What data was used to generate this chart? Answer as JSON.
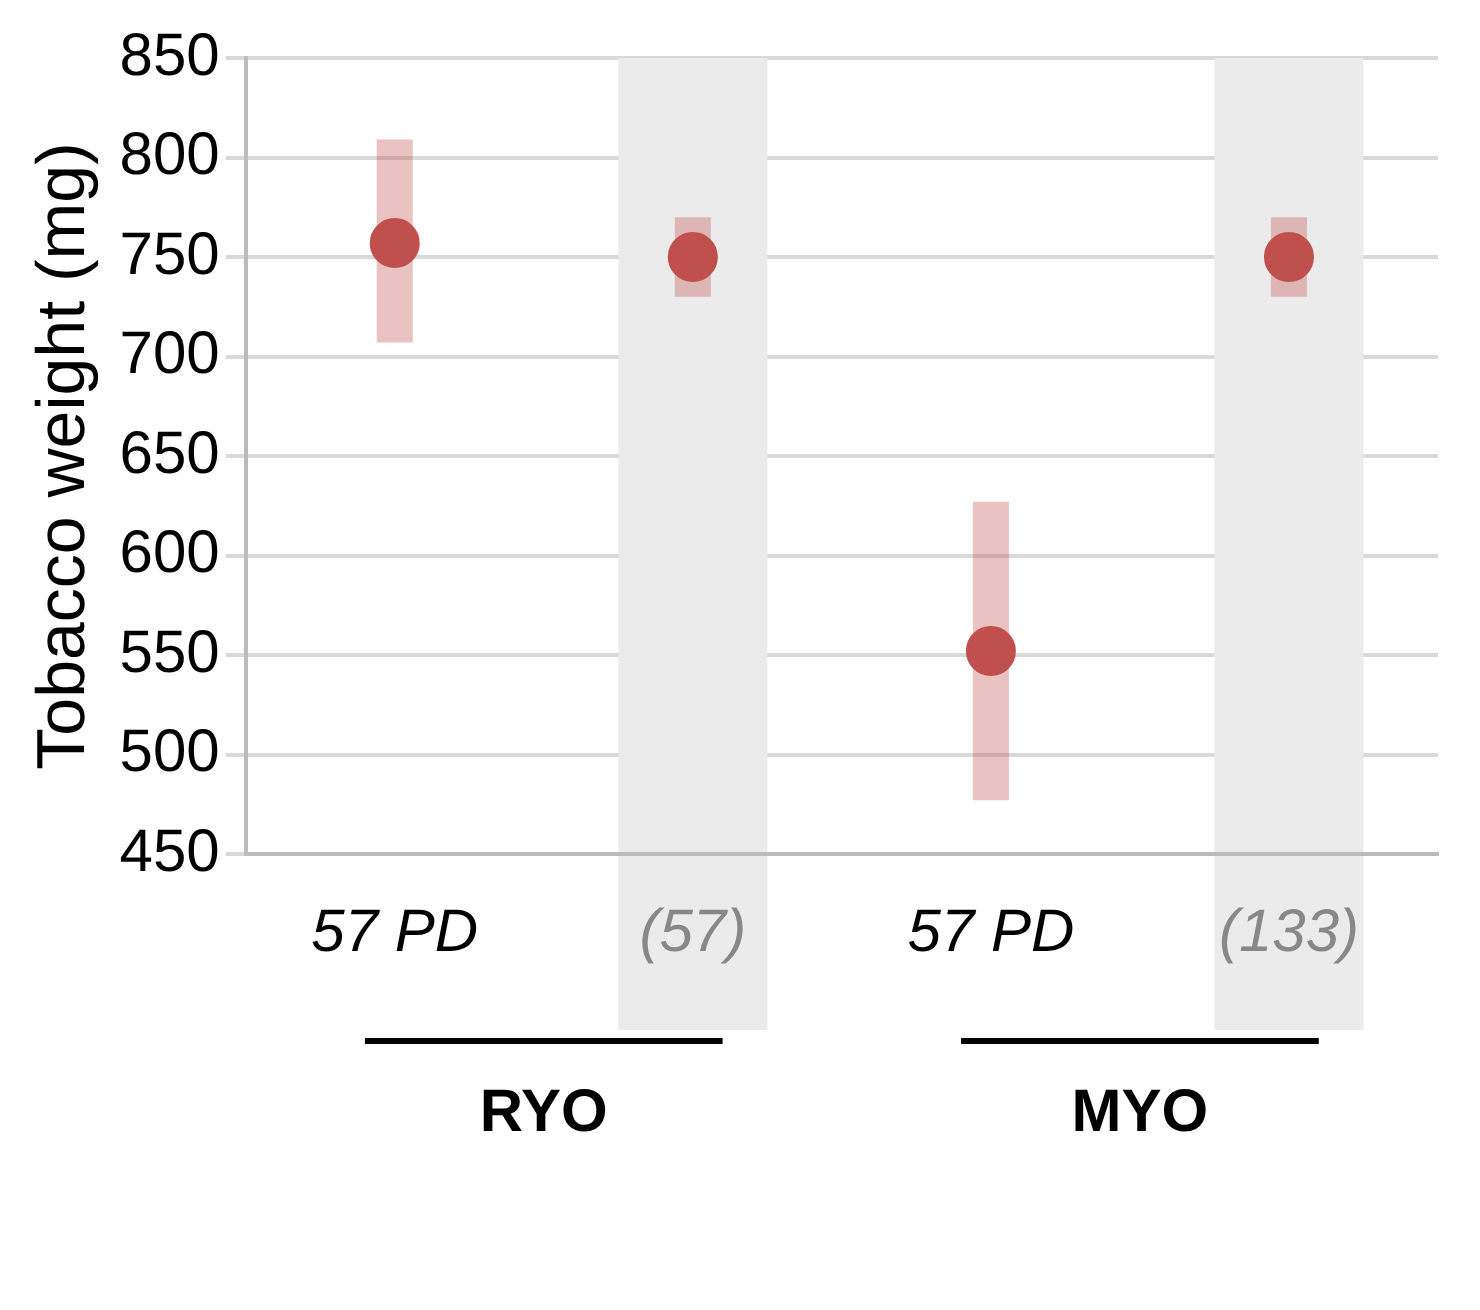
{
  "chart_data": {
    "type": "scatter",
    "ylabel": "Tobacco weight (mg)",
    "categories": [
      "57 PD",
      "(57)",
      "57 PD",
      "(133)"
    ],
    "series": [
      {
        "color": "#c0504d",
        "values": [
          757,
          750,
          552,
          750
        ],
        "errors": [
          [
            707,
            809
          ],
          [
            730,
            770
          ],
          [
            477,
            627
          ],
          [
            730,
            770
          ]
        ]
      }
    ],
    "ylim": [
      450,
      850
    ],
    "yticks": [
      450,
      500,
      550,
      600,
      650,
      700,
      750,
      800,
      850
    ],
    "bands": [
      {
        "axis": "x",
        "from": "(57)",
        "to": "(57)",
        "color": "#ebebeb"
      },
      {
        "axis": "x",
        "from": "(133)",
        "to": "(133)",
        "color": "#ebebeb"
      }
    ],
    "annotations": [
      "RYO",
      "MYO"
    ],
    "grid": "y",
    "marker": "circle",
    "legend": false
  }
}
